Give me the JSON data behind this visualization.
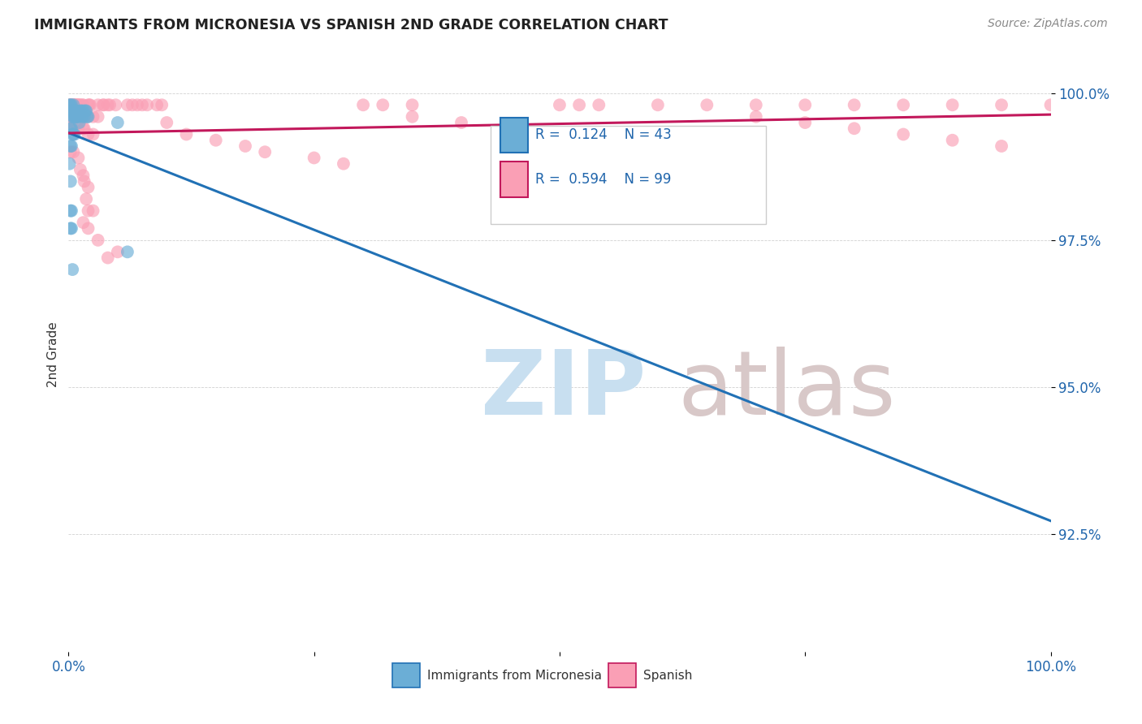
{
  "title": "IMMIGRANTS FROM MICRONESIA VS SPANISH 2ND GRADE CORRELATION CHART",
  "source": "Source: ZipAtlas.com",
  "ylabel": "2nd Grade",
  "yaxis_labels": [
    "100.0%",
    "97.5%",
    "95.0%",
    "92.5%"
  ],
  "yaxis_values": [
    1.0,
    0.975,
    0.95,
    0.925
  ],
  "x_min": 0.0,
  "x_max": 1.0,
  "y_min": 0.905,
  "y_max": 1.006,
  "legend_blue_label": "Immigrants from Micronesia",
  "legend_pink_label": "Spanish",
  "legend_r_blue": "R = 0.124",
  "legend_n_blue": "N = 43",
  "legend_r_pink": "R = 0.594",
  "legend_n_pink": "N = 99",
  "blue_color": "#6baed6",
  "pink_color": "#fa9fb5",
  "blue_line_color": "#2171b5",
  "pink_line_color": "#c2185b",
  "watermark_zip": "ZIP",
  "watermark_atlas": "atlas",
  "watermark_color_zip": "#c8dff0",
  "watermark_color_atlas": "#d8c8c8",
  "background_color": "#ffffff"
}
